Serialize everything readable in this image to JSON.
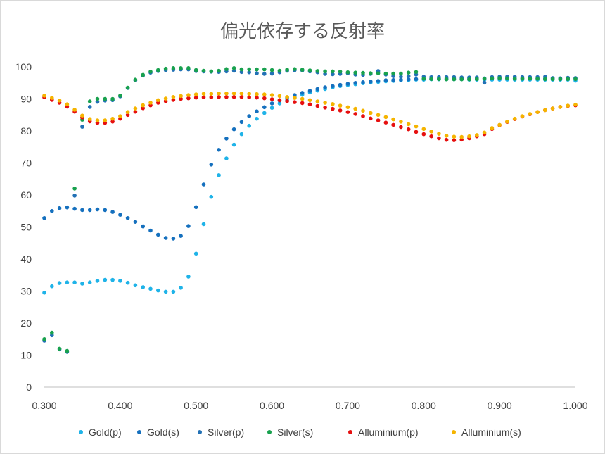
{
  "chart_data": {
    "type": "scatter",
    "title": "偏光依存する反射率",
    "xlabel": "",
    "ylabel": "",
    "xlim": [
      0.3,
      1.0
    ],
    "ylim": [
      0,
      100
    ],
    "grid": false,
    "legend_position": "bottom",
    "x_ticks": [
      "0.300",
      "0.400",
      "0.500",
      "0.600",
      "0.700",
      "0.800",
      "0.900",
      "1.000"
    ],
    "y_ticks": [
      "0",
      "10",
      "20",
      "30",
      "40",
      "50",
      "60",
      "70",
      "80",
      "90",
      "100"
    ],
    "series": [
      {
        "name": "Gold(p)",
        "color": "#1FB3E8",
        "x": [
          0.3,
          0.31,
          0.32,
          0.33,
          0.34,
          0.35,
          0.36,
          0.37,
          0.38,
          0.39,
          0.4,
          0.41,
          0.42,
          0.43,
          0.44,
          0.45,
          0.46,
          0.47,
          0.48,
          0.49,
          0.5,
          0.51,
          0.52,
          0.53,
          0.54,
          0.55,
          0.56,
          0.57,
          0.58,
          0.59,
          0.6,
          0.61,
          0.62,
          0.63,
          0.64,
          0.65,
          0.66,
          0.67,
          0.68,
          0.69,
          0.7,
          0.71,
          0.72,
          0.73,
          0.74,
          0.75,
          0.76,
          0.77,
          0.78,
          0.79,
          0.8,
          0.81,
          0.82,
          0.83,
          0.84,
          0.85,
          0.86,
          0.87,
          0.88,
          0.89,
          0.9,
          0.91,
          0.92,
          0.93,
          0.94,
          0.95,
          0.96,
          0.97,
          0.98,
          0.99,
          1.0
        ],
        "y": [
          29.5,
          31.5,
          32.5,
          32.7,
          32.7,
          32.3,
          32.7,
          33.2,
          33.5,
          33.5,
          33.2,
          32.6,
          31.8,
          31.2,
          30.7,
          30.2,
          29.8,
          29.8,
          31.0,
          34.5,
          41.7,
          50.9,
          59.4,
          66.2,
          71.4,
          75.7,
          79.0,
          81.6,
          83.8,
          85.6,
          87.2,
          88.6,
          89.6,
          90.5,
          91.3,
          92.0,
          92.6,
          93.1,
          93.6,
          94.0,
          94.3,
          94.6,
          94.9,
          95.1,
          95.3,
          95.5,
          95.6,
          95.8,
          95.9,
          96.0,
          96.0,
          96.1,
          96.1,
          96.1,
          96.1,
          96.1,
          96.0,
          96.0,
          96.0,
          96.0,
          96.0,
          96.0,
          96.0,
          96.0,
          96.0,
          96.0,
          96.0,
          96.0,
          96.0,
          96.0,
          95.7
        ]
      },
      {
        "name": "Gold(s)",
        "color": "#1570BE",
        "x": [
          0.3,
          0.31,
          0.32,
          0.33,
          0.34,
          0.35,
          0.36,
          0.37,
          0.38,
          0.39,
          0.4,
          0.41,
          0.42,
          0.43,
          0.44,
          0.45,
          0.46,
          0.47,
          0.48,
          0.49,
          0.5,
          0.51,
          0.52,
          0.53,
          0.54,
          0.55,
          0.56,
          0.57,
          0.58,
          0.59,
          0.6,
          0.61,
          0.62,
          0.63,
          0.64,
          0.65,
          0.66,
          0.67,
          0.68,
          0.69,
          0.7,
          0.71,
          0.72,
          0.73,
          0.74,
          0.75,
          0.76,
          0.77,
          0.78,
          0.79,
          0.8,
          0.81,
          0.82,
          0.83,
          0.84,
          0.85,
          0.86,
          0.87,
          0.88,
          0.89,
          0.9,
          0.91,
          0.92,
          0.93,
          0.94,
          0.95,
          0.96,
          0.97,
          0.98,
          0.99,
          1.0
        ],
        "y": [
          52.8,
          55.0,
          55.9,
          56.1,
          55.7,
          55.3,
          55.3,
          55.5,
          55.3,
          54.7,
          53.8,
          52.8,
          51.6,
          50.2,
          48.9,
          47.6,
          46.6,
          46.4,
          47.2,
          50.3,
          56.2,
          63.3,
          69.5,
          74.1,
          77.6,
          80.5,
          82.8,
          84.6,
          86.1,
          87.4,
          88.6,
          89.5,
          90.4,
          91.2,
          91.9,
          92.5,
          93.1,
          93.6,
          94.0,
          94.4,
          94.7,
          95.0,
          95.2,
          95.4,
          95.6,
          95.8,
          95.9,
          96.0,
          96.1,
          96.2,
          96.3,
          96.3,
          96.4,
          96.4,
          96.4,
          96.4,
          96.4,
          96.4,
          96.4,
          96.4,
          96.4,
          96.4,
          96.4,
          96.4,
          96.4,
          96.4,
          96.4,
          96.4,
          96.4,
          96.4,
          96.4
        ]
      },
      {
        "name": "Silver(p)",
        "color": "#2271B5",
        "x": [
          0.3,
          0.31,
          0.32,
          0.33,
          0.34,
          0.35,
          0.36,
          0.37,
          0.38,
          0.39,
          0.4,
          0.41,
          0.42,
          0.43,
          0.44,
          0.45,
          0.46,
          0.47,
          0.48,
          0.49,
          0.5,
          0.51,
          0.52,
          0.53,
          0.54,
          0.55,
          0.56,
          0.57,
          0.58,
          0.59,
          0.6,
          0.61,
          0.62,
          0.63,
          0.64,
          0.65,
          0.66,
          0.67,
          0.68,
          0.69,
          0.7,
          0.71,
          0.72,
          0.73,
          0.74,
          0.75,
          0.76,
          0.77,
          0.78,
          0.79,
          0.8,
          0.81,
          0.82,
          0.83,
          0.84,
          0.85,
          0.86,
          0.87,
          0.88,
          0.89,
          0.9,
          0.91,
          0.92,
          0.93,
          0.94,
          0.95,
          0.96,
          0.97,
          0.98,
          0.99,
          1.0
        ],
        "y": [
          14.5,
          16.2,
          11.8,
          11.0,
          59.8,
          81.3,
          87.5,
          89.1,
          89.5,
          89.6,
          90.8,
          93.4,
          95.8,
          97.3,
          98.2,
          98.7,
          99.0,
          99.1,
          99.2,
          99.2,
          98.7,
          98.6,
          98.5,
          98.4,
          98.6,
          98.8,
          98.4,
          98.3,
          98.0,
          97.8,
          97.9,
          98.3,
          98.8,
          99.0,
          98.9,
          98.6,
          98.3,
          97.8,
          97.7,
          97.8,
          98.0,
          97.6,
          97.5,
          97.8,
          98.7,
          97.6,
          97.1,
          96.9,
          97.1,
          97.6,
          96.9,
          96.8,
          96.8,
          96.8,
          96.8,
          96.7,
          96.7,
          96.7,
          95.1,
          96.8,
          96.9,
          96.9,
          96.9,
          96.8,
          96.8,
          96.8,
          96.9,
          96.5,
          96.4,
          96.6,
          96.5
        ]
      },
      {
        "name": "Silver(s)",
        "color": "#18A14E",
        "x": [
          0.3,
          0.31,
          0.32,
          0.33,
          0.34,
          0.35,
          0.36,
          0.37,
          0.38,
          0.39,
          0.4,
          0.41,
          0.42,
          0.43,
          0.44,
          0.45,
          0.46,
          0.47,
          0.48,
          0.49,
          0.5,
          0.51,
          0.52,
          0.53,
          0.54,
          0.55,
          0.56,
          0.57,
          0.58,
          0.59,
          0.6,
          0.61,
          0.62,
          0.63,
          0.64,
          0.65,
          0.66,
          0.67,
          0.68,
          0.69,
          0.7,
          0.71,
          0.72,
          0.73,
          0.74,
          0.75,
          0.76,
          0.77,
          0.78,
          0.79,
          0.8,
          0.81,
          0.82,
          0.83,
          0.84,
          0.85,
          0.86,
          0.87,
          0.88,
          0.89,
          0.9,
          0.91,
          0.92,
          0.93,
          0.94,
          0.95,
          0.96,
          0.97,
          0.98,
          0.99,
          1.0
        ],
        "y": [
          15.0,
          17.0,
          12.0,
          11.3,
          62.0,
          83.5,
          89.2,
          90.0,
          90.0,
          90.0,
          91.0,
          93.5,
          96.0,
          97.5,
          98.5,
          99.0,
          99.4,
          99.6,
          99.6,
          99.6,
          99.0,
          98.8,
          98.6,
          98.8,
          99.3,
          99.6,
          99.2,
          99.2,
          99.2,
          99.2,
          99.0,
          98.8,
          99.1,
          99.3,
          99.1,
          98.9,
          98.7,
          98.6,
          98.6,
          98.5,
          98.3,
          98.2,
          98.1,
          98.0,
          98.0,
          97.9,
          97.9,
          97.9,
          98.2,
          98.4,
          96.3,
          96.2,
          96.2,
          96.1,
          96.1,
          96.1,
          96.1,
          96.2,
          96.3,
          96.4,
          96.5,
          96.4,
          96.3,
          96.3,
          96.3,
          96.3,
          96.2,
          96.2,
          96.2,
          96.2,
          96.2
        ]
      },
      {
        "name": "Alluminium(p)",
        "color": "#E60F0F",
        "x": [
          0.3,
          0.31,
          0.32,
          0.33,
          0.34,
          0.35,
          0.36,
          0.37,
          0.38,
          0.39,
          0.4,
          0.41,
          0.42,
          0.43,
          0.44,
          0.45,
          0.46,
          0.47,
          0.48,
          0.49,
          0.5,
          0.51,
          0.52,
          0.53,
          0.54,
          0.55,
          0.56,
          0.57,
          0.58,
          0.59,
          0.6,
          0.61,
          0.62,
          0.63,
          0.64,
          0.65,
          0.66,
          0.67,
          0.68,
          0.69,
          0.7,
          0.71,
          0.72,
          0.73,
          0.74,
          0.75,
          0.76,
          0.77,
          0.78,
          0.79,
          0.8,
          0.81,
          0.82,
          0.83,
          0.84,
          0.85,
          0.86,
          0.87,
          0.88,
          0.89,
          0.9,
          0.91,
          0.92,
          0.93,
          0.94,
          0.95,
          0.96,
          0.97,
          0.98,
          0.99,
          1.0
        ],
        "y": [
          90.5,
          89.7,
          88.8,
          87.6,
          86.0,
          84.2,
          83.0,
          82.5,
          82.5,
          82.9,
          83.8,
          85.0,
          86.0,
          87.1,
          88.0,
          88.8,
          89.3,
          89.7,
          90.0,
          90.2,
          90.4,
          90.5,
          90.5,
          90.6,
          90.6,
          90.6,
          90.6,
          90.5,
          90.4,
          90.2,
          89.9,
          89.6,
          89.3,
          89.0,
          88.7,
          88.3,
          87.8,
          87.3,
          86.9,
          86.4,
          85.9,
          85.3,
          84.6,
          83.9,
          83.3,
          82.6,
          81.9,
          81.2,
          80.5,
          79.7,
          79.0,
          78.3,
          77.7,
          77.2,
          77.1,
          77.3,
          77.7,
          78.3,
          79.0,
          80.6,
          81.8,
          82.8,
          83.7,
          84.5,
          85.2,
          85.9,
          86.5,
          87.0,
          87.5,
          87.8,
          88.0
        ]
      },
      {
        "name": "Alluminium(s)",
        "color": "#F5B400",
        "x": [
          0.3,
          0.31,
          0.32,
          0.33,
          0.34,
          0.35,
          0.36,
          0.37,
          0.38,
          0.39,
          0.4,
          0.41,
          0.42,
          0.43,
          0.44,
          0.45,
          0.46,
          0.47,
          0.48,
          0.49,
          0.5,
          0.51,
          0.52,
          0.53,
          0.54,
          0.55,
          0.56,
          0.57,
          0.58,
          0.59,
          0.6,
          0.61,
          0.62,
          0.63,
          0.64,
          0.65,
          0.66,
          0.67,
          0.68,
          0.69,
          0.7,
          0.71,
          0.72,
          0.73,
          0.74,
          0.75,
          0.76,
          0.77,
          0.78,
          0.79,
          0.8,
          0.81,
          0.82,
          0.83,
          0.84,
          0.85,
          0.86,
          0.87,
          0.88,
          0.89,
          0.9,
          0.91,
          0.92,
          0.93,
          0.94,
          0.95,
          0.96,
          0.97,
          0.98,
          0.99,
          1.0
        ],
        "y": [
          91.0,
          90.3,
          89.5,
          88.3,
          86.6,
          84.8,
          83.7,
          83.3,
          83.3,
          83.8,
          84.6,
          85.9,
          87.0,
          88.0,
          88.8,
          89.6,
          90.1,
          90.6,
          90.9,
          91.2,
          91.4,
          91.6,
          91.6,
          91.7,
          91.7,
          91.7,
          91.7,
          91.6,
          91.5,
          91.4,
          91.2,
          90.9,
          90.6,
          90.3,
          90.0,
          89.6,
          89.2,
          88.8,
          88.4,
          87.9,
          87.4,
          86.9,
          86.3,
          85.6,
          85.0,
          84.3,
          83.6,
          82.9,
          82.1,
          81.4,
          80.6,
          79.8,
          79.1,
          78.5,
          78.2,
          78.1,
          78.3,
          78.7,
          79.5,
          80.9,
          81.9,
          82.9,
          83.8,
          84.6,
          85.3,
          85.9,
          86.5,
          87.0,
          87.5,
          87.9,
          88.2
        ]
      }
    ]
  }
}
